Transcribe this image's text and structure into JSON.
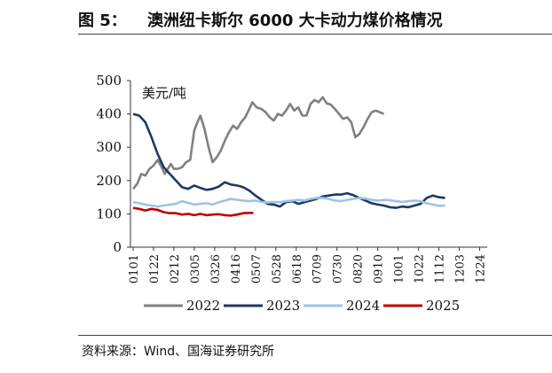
{
  "figure": {
    "label": "图 5：",
    "title": "澳洲纽卡斯尔 6000 大卡动力煤价格情况",
    "source": "资料来源：Wind、国海证券研究所"
  },
  "chart_data": {
    "type": "line",
    "ylabel": "美元/吨",
    "ylim": [
      0,
      500
    ],
    "yticks": [
      0,
      100,
      200,
      300,
      400,
      500
    ],
    "grid": false,
    "legend_position": "bottom",
    "x_labels": [
      "0101",
      "0122",
      "0212",
      "0305",
      "0326",
      "0416",
      "0507",
      "0528",
      "0618",
      "0709",
      "0730",
      "0820",
      "0910",
      "1001",
      "1022",
      "1112",
      "1203",
      "1224"
    ],
    "series": [
      {
        "name": "2022",
        "color": "#808080",
        "points": [
          [
            0,
            175
          ],
          [
            0.2,
            190
          ],
          [
            0.4,
            220
          ],
          [
            0.6,
            215
          ],
          [
            0.8,
            235
          ],
          [
            1,
            245
          ],
          [
            1.2,
            262
          ],
          [
            1.4,
            240
          ],
          [
            1.55,
            220
          ],
          [
            1.7,
            235
          ],
          [
            1.85,
            250
          ],
          [
            2,
            235
          ],
          [
            2.2,
            235
          ],
          [
            2.4,
            240
          ],
          [
            2.6,
            255
          ],
          [
            2.8,
            262
          ],
          [
            3,
            350
          ],
          [
            3.15,
            375
          ],
          [
            3.3,
            395
          ],
          [
            3.5,
            355
          ],
          [
            3.7,
            300
          ],
          [
            3.9,
            255
          ],
          [
            4.1,
            270
          ],
          [
            4.3,
            290
          ],
          [
            4.5,
            320
          ],
          [
            4.7,
            345
          ],
          [
            4.9,
            365
          ],
          [
            5.1,
            355
          ],
          [
            5.3,
            375
          ],
          [
            5.5,
            390
          ],
          [
            5.7,
            415
          ],
          [
            5.85,
            435
          ],
          [
            6.05,
            420
          ],
          [
            6.3,
            415
          ],
          [
            6.5,
            405
          ],
          [
            6.7,
            390
          ],
          [
            6.9,
            380
          ],
          [
            7.1,
            400
          ],
          [
            7.3,
            395
          ],
          [
            7.5,
            410
          ],
          [
            7.7,
            430
          ],
          [
            7.9,
            410
          ],
          [
            8.1,
            420
          ],
          [
            8.3,
            395
          ],
          [
            8.5,
            395
          ],
          [
            8.7,
            430
          ],
          [
            8.9,
            442
          ],
          [
            9.1,
            435
          ],
          [
            9.3,
            450
          ],
          [
            9.5,
            432
          ],
          [
            9.7,
            428
          ],
          [
            9.9,
            415
          ],
          [
            10.1,
            400
          ],
          [
            10.3,
            385
          ],
          [
            10.5,
            390
          ],
          [
            10.7,
            375
          ],
          [
            10.9,
            330
          ],
          [
            11.1,
            340
          ],
          [
            11.3,
            360
          ],
          [
            11.5,
            385
          ],
          [
            11.7,
            405
          ],
          [
            11.9,
            410
          ],
          [
            12.1,
            405
          ],
          [
            12.3,
            400
          ]
        ]
      },
      {
        "name": "2023",
        "color": "#1f3864",
        "points": [
          [
            0,
            400
          ],
          [
            0.3,
            395
          ],
          [
            0.6,
            375
          ],
          [
            0.9,
            330
          ],
          [
            1.2,
            280
          ],
          [
            1.5,
            240
          ],
          [
            1.8,
            220
          ],
          [
            2.1,
            200
          ],
          [
            2.4,
            180
          ],
          [
            2.7,
            175
          ],
          [
            3,
            185
          ],
          [
            3.3,
            178
          ],
          [
            3.6,
            172
          ],
          [
            3.9,
            175
          ],
          [
            4.2,
            182
          ],
          [
            4.5,
            195
          ],
          [
            4.8,
            188
          ],
          [
            5.1,
            185
          ],
          [
            5.4,
            180
          ],
          [
            5.7,
            170
          ],
          [
            6,
            155
          ],
          [
            6.3,
            142
          ],
          [
            6.6,
            130
          ],
          [
            6.9,
            128
          ],
          [
            7.2,
            122
          ],
          [
            7.5,
            135
          ],
          [
            7.8,
            138
          ],
          [
            8.1,
            130
          ],
          [
            8.4,
            135
          ],
          [
            8.7,
            140
          ],
          [
            9,
            145
          ],
          [
            9.3,
            152
          ],
          [
            9.6,
            155
          ],
          [
            9.9,
            158
          ],
          [
            10.2,
            158
          ],
          [
            10.5,
            162
          ],
          [
            10.8,
            156
          ],
          [
            11.1,
            148
          ],
          [
            11.4,
            140
          ],
          [
            11.7,
            132
          ],
          [
            12,
            128
          ],
          [
            12.3,
            125
          ],
          [
            12.6,
            120
          ],
          [
            12.9,
            118
          ],
          [
            13.2,
            122
          ],
          [
            13.5,
            120
          ],
          [
            13.8,
            125
          ],
          [
            14.1,
            130
          ],
          [
            14.4,
            148
          ],
          [
            14.7,
            155
          ],
          [
            15,
            150
          ],
          [
            15.3,
            148
          ]
        ]
      },
      {
        "name": "2024",
        "color": "#9dc3e6",
        "points": [
          [
            0,
            135
          ],
          [
            0.3,
            132
          ],
          [
            0.6,
            128
          ],
          [
            0.9,
            125
          ],
          [
            1.2,
            122
          ],
          [
            1.5,
            125
          ],
          [
            1.8,
            128
          ],
          [
            2.1,
            130
          ],
          [
            2.4,
            138
          ],
          [
            2.7,
            133
          ],
          [
            3,
            128
          ],
          [
            3.3,
            130
          ],
          [
            3.6,
            132
          ],
          [
            3.9,
            128
          ],
          [
            4.2,
            135
          ],
          [
            4.5,
            140
          ],
          [
            4.8,
            145
          ],
          [
            5.1,
            142
          ],
          [
            5.4,
            140
          ],
          [
            5.7,
            138
          ],
          [
            6,
            140
          ],
          [
            6.3,
            136
          ],
          [
            6.6,
            134
          ],
          [
            6.9,
            136
          ],
          [
            7.2,
            135
          ],
          [
            7.5,
            138
          ],
          [
            7.8,
            140
          ],
          [
            8.1,
            142
          ],
          [
            8.4,
            140
          ],
          [
            8.7,
            145
          ],
          [
            9,
            148
          ],
          [
            9.3,
            148
          ],
          [
            9.6,
            145
          ],
          [
            9.9,
            140
          ],
          [
            10.2,
            138
          ],
          [
            10.5,
            142
          ],
          [
            10.8,
            145
          ],
          [
            11.1,
            148
          ],
          [
            11.4,
            146
          ],
          [
            11.7,
            142
          ],
          [
            12,
            140
          ],
          [
            12.3,
            142
          ],
          [
            12.6,
            141
          ],
          [
            12.9,
            138
          ],
          [
            13.2,
            136
          ],
          [
            13.5,
            138
          ],
          [
            13.8,
            140
          ],
          [
            14.1,
            138
          ],
          [
            14.4,
            132
          ],
          [
            14.7,
            128
          ],
          [
            15,
            124
          ],
          [
            15.3,
            125
          ]
        ]
      },
      {
        "name": "2025",
        "color": "#c00000",
        "points": [
          [
            0,
            118
          ],
          [
            0.3,
            115
          ],
          [
            0.6,
            110
          ],
          [
            0.9,
            115
          ],
          [
            1.2,
            112
          ],
          [
            1.5,
            105
          ],
          [
            1.8,
            102
          ],
          [
            2.1,
            102
          ],
          [
            2.4,
            98
          ],
          [
            2.7,
            100
          ],
          [
            3,
            96
          ],
          [
            3.3,
            100
          ],
          [
            3.6,
            96
          ],
          [
            3.9,
            98
          ],
          [
            4.2,
            99
          ],
          [
            4.5,
            96
          ],
          [
            4.8,
            95
          ],
          [
            5.1,
            98
          ],
          [
            5.4,
            102
          ],
          [
            5.7,
            103
          ],
          [
            5.9,
            103
          ]
        ]
      }
    ]
  }
}
